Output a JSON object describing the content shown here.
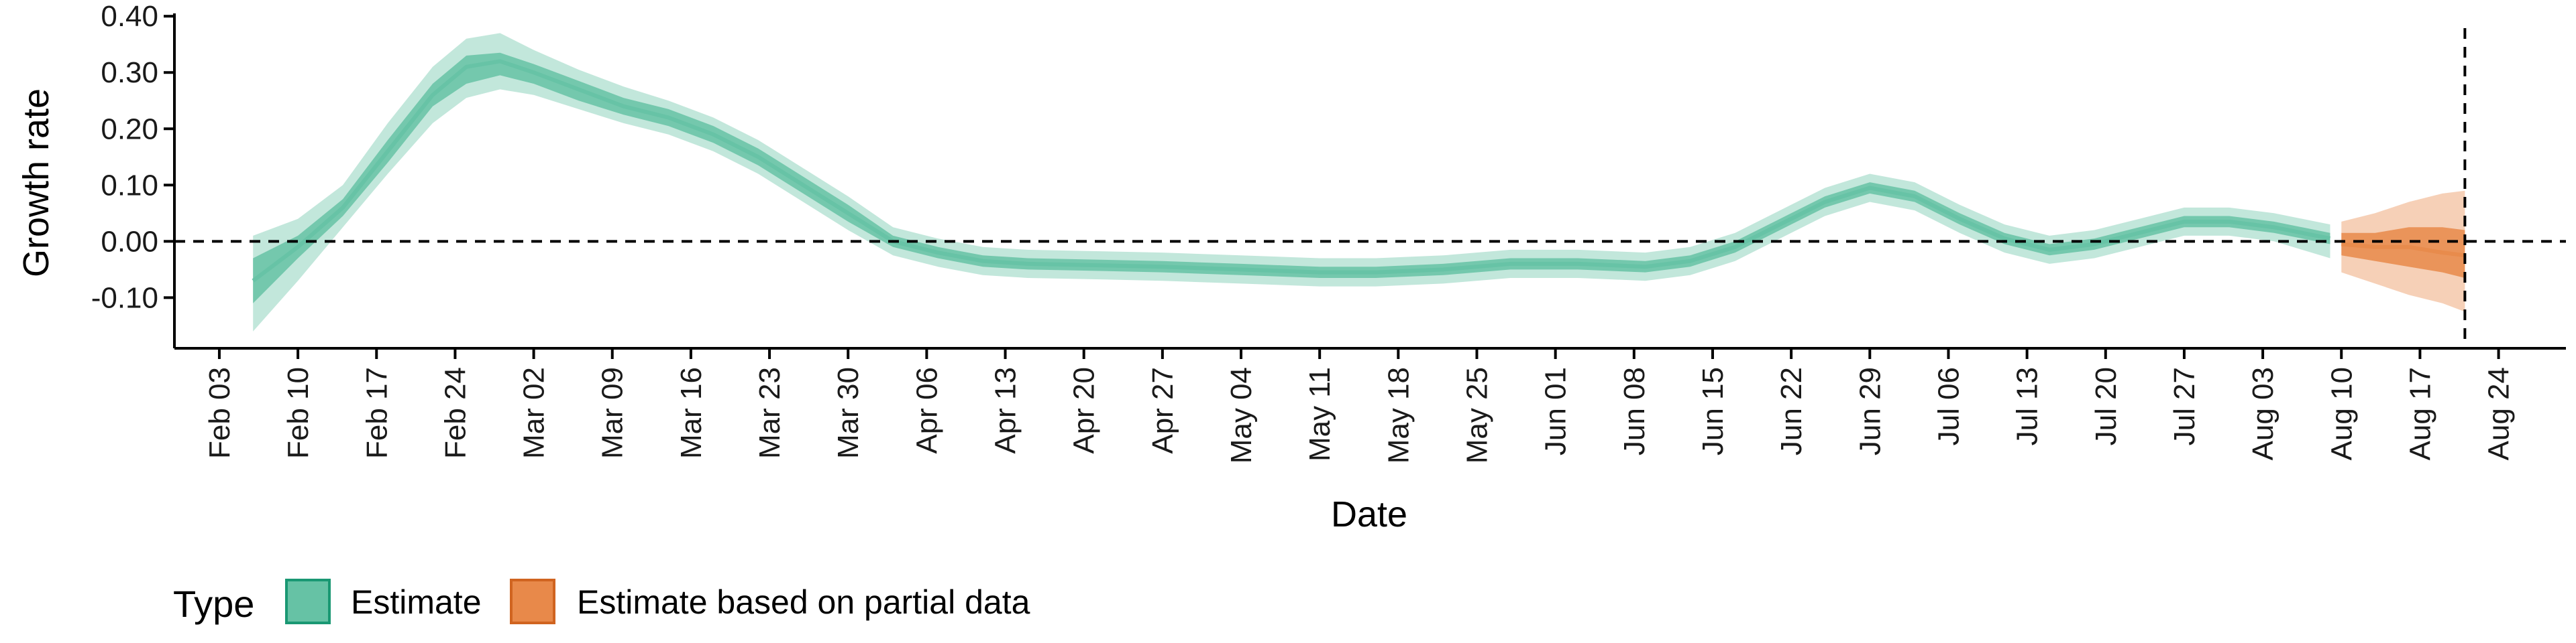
{
  "chart_data": {
    "type": "area",
    "xlabel": "Date",
    "ylabel": "Growth rate",
    "xlim": [
      "2020-01-30",
      "2020-08-30"
    ],
    "ylim": [
      -0.19,
      0.405
    ],
    "x_ticks": [
      "2020-02-03",
      "2020-02-10",
      "2020-02-17",
      "2020-02-24",
      "2020-03-02",
      "2020-03-09",
      "2020-03-16",
      "2020-03-23",
      "2020-03-30",
      "2020-04-06",
      "2020-04-13",
      "2020-04-20",
      "2020-04-27",
      "2020-05-04",
      "2020-05-11",
      "2020-05-18",
      "2020-05-25",
      "2020-06-01",
      "2020-06-08",
      "2020-06-15",
      "2020-06-22",
      "2020-06-29",
      "2020-07-06",
      "2020-07-13",
      "2020-07-20",
      "2020-07-27",
      "2020-08-03",
      "2020-08-10",
      "2020-08-17",
      "2020-08-24"
    ],
    "x_tick_labels": [
      "Feb 03",
      "Feb 10",
      "Feb 17",
      "Feb 24",
      "Mar 02",
      "Mar 09",
      "Mar 16",
      "Mar 23",
      "Mar 30",
      "Apr 06",
      "Apr 13",
      "Apr 20",
      "Apr 27",
      "May 04",
      "May 11",
      "May 18",
      "May 25",
      "Jun 01",
      "Jun 08",
      "Jun 15",
      "Jun 22",
      "Jun 29",
      "Jul 06",
      "Jul 13",
      "Jul 20",
      "Jul 27",
      "Aug 03",
      "Aug 10",
      "Aug 17",
      "Aug 24"
    ],
    "y_ticks": [
      -0.1,
      0.0,
      0.1,
      0.2,
      0.3,
      0.4
    ],
    "y_tick_labels": [
      "-0.10",
      "0.00",
      "0.10",
      "0.20",
      "0.30",
      "0.40"
    ],
    "grid": false,
    "reference_lines": {
      "horizontal_y": 0.0,
      "vertical_x": "2020-08-21"
    },
    "legend": {
      "title": "Type",
      "position": "bottom-left",
      "entries": [
        {
          "label": "Estimate",
          "color": "#66C2A5"
        },
        {
          "label": "Estimate based on partial data",
          "color": "#E8894A"
        }
      ]
    },
    "series": [
      {
        "name": "Estimate",
        "color": "#66C2A5",
        "x": [
          "2020-02-06",
          "2020-02-10",
          "2020-02-14",
          "2020-02-18",
          "2020-02-22",
          "2020-02-25",
          "2020-02-28",
          "2020-03-02",
          "2020-03-06",
          "2020-03-10",
          "2020-03-14",
          "2020-03-18",
          "2020-03-22",
          "2020-03-26",
          "2020-03-30",
          "2020-04-03",
          "2020-04-07",
          "2020-04-11",
          "2020-04-15",
          "2020-04-20",
          "2020-04-27",
          "2020-05-04",
          "2020-05-11",
          "2020-05-16",
          "2020-05-22",
          "2020-05-28",
          "2020-06-03",
          "2020-06-09",
          "2020-06-13",
          "2020-06-17",
          "2020-06-21",
          "2020-06-25",
          "2020-06-29",
          "2020-07-03",
          "2020-07-07",
          "2020-07-11",
          "2020-07-15",
          "2020-07-19",
          "2020-07-23",
          "2020-07-27",
          "2020-07-31",
          "2020-08-04",
          "2020-08-09"
        ],
        "median": [
          -0.07,
          -0.01,
          0.06,
          0.16,
          0.26,
          0.31,
          0.32,
          0.3,
          0.27,
          0.24,
          0.22,
          0.19,
          0.15,
          0.1,
          0.05,
          0.0,
          -0.02,
          -0.035,
          -0.04,
          -0.042,
          -0.045,
          -0.05,
          -0.055,
          -0.055,
          -0.05,
          -0.04,
          -0.04,
          -0.045,
          -0.035,
          -0.01,
          0.03,
          0.07,
          0.095,
          0.08,
          0.04,
          0.005,
          -0.015,
          -0.005,
          0.015,
          0.035,
          0.035,
          0.025,
          0.005
        ],
        "inner_lower": [
          -0.11,
          -0.03,
          0.045,
          0.14,
          0.24,
          0.28,
          0.295,
          0.28,
          0.25,
          0.225,
          0.205,
          0.175,
          0.135,
          0.085,
          0.035,
          -0.01,
          -0.03,
          -0.045,
          -0.05,
          -0.052,
          -0.055,
          -0.06,
          -0.065,
          -0.065,
          -0.06,
          -0.05,
          -0.05,
          -0.055,
          -0.045,
          -0.02,
          0.02,
          0.06,
          0.085,
          0.07,
          0.03,
          -0.005,
          -0.025,
          -0.015,
          0.005,
          0.025,
          0.025,
          0.015,
          -0.005
        ],
        "inner_upper": [
          -0.03,
          0.01,
          0.075,
          0.18,
          0.28,
          0.33,
          0.335,
          0.315,
          0.285,
          0.255,
          0.235,
          0.205,
          0.165,
          0.115,
          0.065,
          0.01,
          -0.01,
          -0.025,
          -0.03,
          -0.032,
          -0.035,
          -0.04,
          -0.045,
          -0.045,
          -0.04,
          -0.03,
          -0.03,
          -0.035,
          -0.025,
          0.0,
          0.04,
          0.08,
          0.105,
          0.09,
          0.05,
          0.015,
          -0.005,
          0.005,
          0.025,
          0.045,
          0.045,
          0.035,
          0.015
        ],
        "outer_lower": [
          -0.16,
          -0.07,
          0.025,
          0.12,
          0.21,
          0.255,
          0.27,
          0.26,
          0.235,
          0.21,
          0.19,
          0.16,
          0.12,
          0.07,
          0.02,
          -0.025,
          -0.045,
          -0.06,
          -0.065,
          -0.067,
          -0.07,
          -0.075,
          -0.08,
          -0.08,
          -0.075,
          -0.065,
          -0.065,
          -0.07,
          -0.06,
          -0.035,
          0.005,
          0.045,
          0.07,
          0.055,
          0.015,
          -0.02,
          -0.04,
          -0.03,
          -0.01,
          0.01,
          0.01,
          0.0,
          -0.03
        ],
        "outer_upper": [
          0.01,
          0.04,
          0.1,
          0.21,
          0.31,
          0.36,
          0.37,
          0.34,
          0.305,
          0.275,
          0.25,
          0.22,
          0.18,
          0.13,
          0.08,
          0.025,
          0.005,
          -0.01,
          -0.015,
          -0.017,
          -0.02,
          -0.025,
          -0.03,
          -0.03,
          -0.025,
          -0.015,
          -0.015,
          -0.02,
          -0.01,
          0.015,
          0.055,
          0.095,
          0.12,
          0.105,
          0.065,
          0.03,
          0.01,
          0.02,
          0.04,
          0.06,
          0.06,
          0.05,
          0.03
        ]
      },
      {
        "name": "Estimate based on partial data",
        "color": "#E8894A",
        "x": [
          "2020-08-10",
          "2020-08-13",
          "2020-08-16",
          "2020-08-19",
          "2020-08-21"
        ],
        "median": [
          -0.005,
          -0.01,
          -0.01,
          -0.02,
          -0.025
        ],
        "inner_lower": [
          -0.025,
          -0.035,
          -0.045,
          -0.055,
          -0.065
        ],
        "inner_upper": [
          0.015,
          0.015,
          0.025,
          0.025,
          0.02
        ],
        "outer_lower": [
          -0.055,
          -0.075,
          -0.095,
          -0.11,
          -0.125
        ],
        "outer_upper": [
          0.035,
          0.05,
          0.07,
          0.085,
          0.09
        ]
      }
    ]
  }
}
